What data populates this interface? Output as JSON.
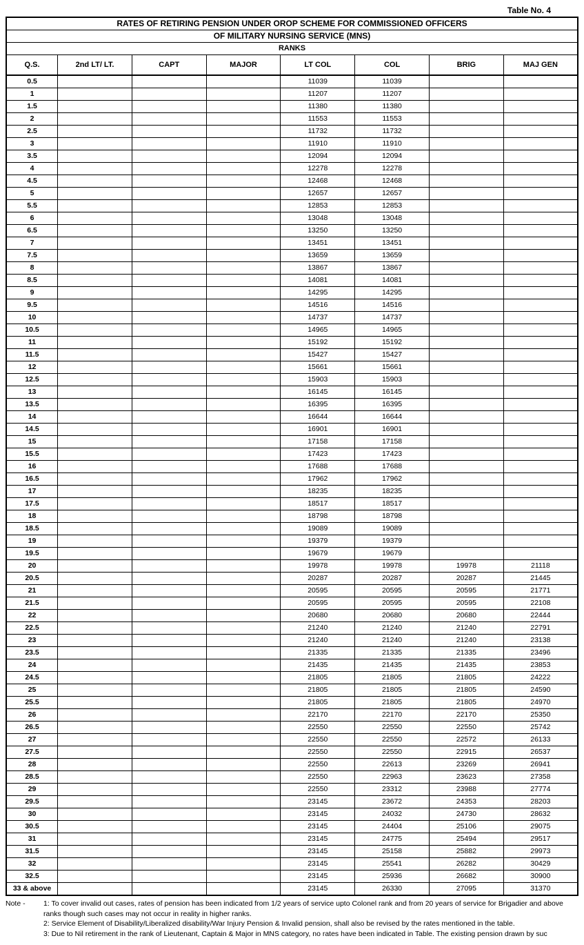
{
  "table_label": "Table No. 4",
  "title_line1": "RATES OF RETIRING PENSION UNDER OROP SCHEME FOR COMMISSIONED OFFICERS",
  "title_line2": "OF MILITARY NURSING SERVICE (MNS)",
  "ranks_label": "RANKS",
  "columns": [
    "Q.S.",
    "2nd LT/ LT.",
    "CAPT",
    "MAJOR",
    "LT COL",
    "COL",
    "BRIG",
    "MAJ GEN"
  ],
  "col_widths": [
    "9%",
    "13%",
    "13%",
    "13%",
    "13%",
    "13%",
    "13%",
    "13%"
  ],
  "rows": [
    {
      "qs": "0.5",
      "lt": "",
      "capt": "",
      "maj": "",
      "ltcol": "11039",
      "col": "11039",
      "brig": "",
      "mg": ""
    },
    {
      "qs": "1",
      "lt": "",
      "capt": "",
      "maj": "",
      "ltcol": "11207",
      "col": "11207",
      "brig": "",
      "mg": ""
    },
    {
      "qs": "1.5",
      "lt": "",
      "capt": "",
      "maj": "",
      "ltcol": "11380",
      "col": "11380",
      "brig": "",
      "mg": ""
    },
    {
      "qs": "2",
      "lt": "",
      "capt": "",
      "maj": "",
      "ltcol": "11553",
      "col": "11553",
      "brig": "",
      "mg": ""
    },
    {
      "qs": "2.5",
      "lt": "",
      "capt": "",
      "maj": "",
      "ltcol": "11732",
      "col": "11732",
      "brig": "",
      "mg": ""
    },
    {
      "qs": "3",
      "lt": "",
      "capt": "",
      "maj": "",
      "ltcol": "11910",
      "col": "11910",
      "brig": "",
      "mg": ""
    },
    {
      "qs": "3.5",
      "lt": "",
      "capt": "",
      "maj": "",
      "ltcol": "12094",
      "col": "12094",
      "brig": "",
      "mg": ""
    },
    {
      "qs": "4",
      "lt": "",
      "capt": "",
      "maj": "",
      "ltcol": "12278",
      "col": "12278",
      "brig": "",
      "mg": ""
    },
    {
      "qs": "4.5",
      "lt": "",
      "capt": "",
      "maj": "",
      "ltcol": "12468",
      "col": "12468",
      "brig": "",
      "mg": ""
    },
    {
      "qs": "5",
      "lt": "",
      "capt": "",
      "maj": "",
      "ltcol": "12657",
      "col": "12657",
      "brig": "",
      "mg": ""
    },
    {
      "qs": "5.5",
      "lt": "",
      "capt": "",
      "maj": "",
      "ltcol": "12853",
      "col": "12853",
      "brig": "",
      "mg": ""
    },
    {
      "qs": "6",
      "lt": "",
      "capt": "",
      "maj": "",
      "ltcol": "13048",
      "col": "13048",
      "brig": "",
      "mg": ""
    },
    {
      "qs": "6.5",
      "lt": "",
      "capt": "",
      "maj": "",
      "ltcol": "13250",
      "col": "13250",
      "brig": "",
      "mg": ""
    },
    {
      "qs": "7",
      "lt": "",
      "capt": "",
      "maj": "",
      "ltcol": "13451",
      "col": "13451",
      "brig": "",
      "mg": ""
    },
    {
      "qs": "7.5",
      "lt": "",
      "capt": "",
      "maj": "",
      "ltcol": "13659",
      "col": "13659",
      "brig": "",
      "mg": ""
    },
    {
      "qs": "8",
      "lt": "",
      "capt": "",
      "maj": "",
      "ltcol": "13867",
      "col": "13867",
      "brig": "",
      "mg": ""
    },
    {
      "qs": "8.5",
      "lt": "",
      "capt": "",
      "maj": "",
      "ltcol": "14081",
      "col": "14081",
      "brig": "",
      "mg": ""
    },
    {
      "qs": "9",
      "lt": "",
      "capt": "",
      "maj": "",
      "ltcol": "14295",
      "col": "14295",
      "brig": "",
      "mg": ""
    },
    {
      "qs": "9.5",
      "lt": "",
      "capt": "",
      "maj": "",
      "ltcol": "14516",
      "col": "14516",
      "brig": "",
      "mg": ""
    },
    {
      "qs": "10",
      "lt": "",
      "capt": "",
      "maj": "",
      "ltcol": "14737",
      "col": "14737",
      "brig": "",
      "mg": ""
    },
    {
      "qs": "10.5",
      "lt": "",
      "capt": "",
      "maj": "",
      "ltcol": "14965",
      "col": "14965",
      "brig": "",
      "mg": ""
    },
    {
      "qs": "11",
      "lt": "",
      "capt": "",
      "maj": "",
      "ltcol": "15192",
      "col": "15192",
      "brig": "",
      "mg": ""
    },
    {
      "qs": "11.5",
      "lt": "",
      "capt": "",
      "maj": "",
      "ltcol": "15427",
      "col": "15427",
      "brig": "",
      "mg": ""
    },
    {
      "qs": "12",
      "lt": "",
      "capt": "",
      "maj": "",
      "ltcol": "15661",
      "col": "15661",
      "brig": "",
      "mg": ""
    },
    {
      "qs": "12.5",
      "lt": "",
      "capt": "",
      "maj": "",
      "ltcol": "15903",
      "col": "15903",
      "brig": "",
      "mg": ""
    },
    {
      "qs": "13",
      "lt": "",
      "capt": "",
      "maj": "",
      "ltcol": "16145",
      "col": "16145",
      "brig": "",
      "mg": ""
    },
    {
      "qs": "13.5",
      "lt": "",
      "capt": "",
      "maj": "",
      "ltcol": "16395",
      "col": "16395",
      "brig": "",
      "mg": ""
    },
    {
      "qs": "14",
      "lt": "",
      "capt": "",
      "maj": "",
      "ltcol": "16644",
      "col": "16644",
      "brig": "",
      "mg": ""
    },
    {
      "qs": "14.5",
      "lt": "",
      "capt": "",
      "maj": "",
      "ltcol": "16901",
      "col": "16901",
      "brig": "",
      "mg": ""
    },
    {
      "qs": "15",
      "lt": "",
      "capt": "",
      "maj": "",
      "ltcol": "17158",
      "col": "17158",
      "brig": "",
      "mg": ""
    },
    {
      "qs": "15.5",
      "lt": "",
      "capt": "",
      "maj": "",
      "ltcol": "17423",
      "col": "17423",
      "brig": "",
      "mg": ""
    },
    {
      "qs": "16",
      "lt": "",
      "capt": "",
      "maj": "",
      "ltcol": "17688",
      "col": "17688",
      "brig": "",
      "mg": ""
    },
    {
      "qs": "16.5",
      "lt": "",
      "capt": "",
      "maj": "",
      "ltcol": "17962",
      "col": "17962",
      "brig": "",
      "mg": ""
    },
    {
      "qs": "17",
      "lt": "",
      "capt": "",
      "maj": "",
      "ltcol": "18235",
      "col": "18235",
      "brig": "",
      "mg": ""
    },
    {
      "qs": "17.5",
      "lt": "",
      "capt": "",
      "maj": "",
      "ltcol": "18517",
      "col": "18517",
      "brig": "",
      "mg": ""
    },
    {
      "qs": "18",
      "lt": "",
      "capt": "",
      "maj": "",
      "ltcol": "18798",
      "col": "18798",
      "brig": "",
      "mg": ""
    },
    {
      "qs": "18.5",
      "lt": "",
      "capt": "",
      "maj": "",
      "ltcol": "19089",
      "col": "19089",
      "brig": "",
      "mg": ""
    },
    {
      "qs": "19",
      "lt": "",
      "capt": "",
      "maj": "",
      "ltcol": "19379",
      "col": "19379",
      "brig": "",
      "mg": ""
    },
    {
      "qs": "19.5",
      "lt": "",
      "capt": "",
      "maj": "",
      "ltcol": "19679",
      "col": "19679",
      "brig": "",
      "mg": ""
    },
    {
      "qs": "20",
      "lt": "",
      "capt": "",
      "maj": "",
      "ltcol": "19978",
      "col": "19978",
      "brig": "19978",
      "mg": "21118"
    },
    {
      "qs": "20.5",
      "lt": "",
      "capt": "",
      "maj": "",
      "ltcol": "20287",
      "col": "20287",
      "brig": "20287",
      "mg": "21445"
    },
    {
      "qs": "21",
      "lt": "",
      "capt": "",
      "maj": "",
      "ltcol": "20595",
      "col": "20595",
      "brig": "20595",
      "mg": "21771"
    },
    {
      "qs": "21.5",
      "lt": "",
      "capt": "",
      "maj": "",
      "ltcol": "20595",
      "col": "20595",
      "brig": "20595",
      "mg": "22108"
    },
    {
      "qs": "22",
      "lt": "",
      "capt": "",
      "maj": "",
      "ltcol": "20680",
      "col": "20680",
      "brig": "20680",
      "mg": "22444"
    },
    {
      "qs": "22.5",
      "lt": "",
      "capt": "",
      "maj": "",
      "ltcol": "21240",
      "col": "21240",
      "brig": "21240",
      "mg": "22791"
    },
    {
      "qs": "23",
      "lt": "",
      "capt": "",
      "maj": "",
      "ltcol": "21240",
      "col": "21240",
      "brig": "21240",
      "mg": "23138"
    },
    {
      "qs": "23.5",
      "lt": "",
      "capt": "",
      "maj": "",
      "ltcol": "21335",
      "col": "21335",
      "brig": "21335",
      "mg": "23496"
    },
    {
      "qs": "24",
      "lt": "",
      "capt": "",
      "maj": "",
      "ltcol": "21435",
      "col": "21435",
      "brig": "21435",
      "mg": "23853"
    },
    {
      "qs": "24.5",
      "lt": "",
      "capt": "",
      "maj": "",
      "ltcol": "21805",
      "col": "21805",
      "brig": "21805",
      "mg": "24222"
    },
    {
      "qs": "25",
      "lt": "",
      "capt": "",
      "maj": "",
      "ltcol": "21805",
      "col": "21805",
      "brig": "21805",
      "mg": "24590"
    },
    {
      "qs": "25.5",
      "lt": "",
      "capt": "",
      "maj": "",
      "ltcol": "21805",
      "col": "21805",
      "brig": "21805",
      "mg": "24970"
    },
    {
      "qs": "26",
      "lt": "",
      "capt": "",
      "maj": "",
      "ltcol": "22170",
      "col": "22170",
      "brig": "22170",
      "mg": "25350"
    },
    {
      "qs": "26.5",
      "lt": "",
      "capt": "",
      "maj": "",
      "ltcol": "22550",
      "col": "22550",
      "brig": "22550",
      "mg": "25742"
    },
    {
      "qs": "27",
      "lt": "",
      "capt": "",
      "maj": "",
      "ltcol": "22550",
      "col": "22550",
      "brig": "22572",
      "mg": "26133"
    },
    {
      "qs": "27.5",
      "lt": "",
      "capt": "",
      "maj": "",
      "ltcol": "22550",
      "col": "22550",
      "brig": "22915",
      "mg": "26537"
    },
    {
      "qs": "28",
      "lt": "",
      "capt": "",
      "maj": "",
      "ltcol": "22550",
      "col": "22613",
      "brig": "23269",
      "mg": "26941"
    },
    {
      "qs": "28.5",
      "lt": "",
      "capt": "",
      "maj": "",
      "ltcol": "22550",
      "col": "22963",
      "brig": "23623",
      "mg": "27358"
    },
    {
      "qs": "29",
      "lt": "",
      "capt": "",
      "maj": "",
      "ltcol": "22550",
      "col": "23312",
      "brig": "23988",
      "mg": "27774"
    },
    {
      "qs": "29.5",
      "lt": "",
      "capt": "",
      "maj": "",
      "ltcol": "23145",
      "col": "23672",
      "brig": "24353",
      "mg": "28203"
    },
    {
      "qs": "30",
      "lt": "",
      "capt": "",
      "maj": "",
      "ltcol": "23145",
      "col": "24032",
      "brig": "24730",
      "mg": "28632"
    },
    {
      "qs": "30.5",
      "lt": "",
      "capt": "",
      "maj": "",
      "ltcol": "23145",
      "col": "24404",
      "brig": "25106",
      "mg": "29075"
    },
    {
      "qs": "31",
      "lt": "",
      "capt": "",
      "maj": "",
      "ltcol": "23145",
      "col": "24775",
      "brig": "25494",
      "mg": "29517"
    },
    {
      "qs": "31.5",
      "lt": "",
      "capt": "",
      "maj": "",
      "ltcol": "23145",
      "col": "25158",
      "brig": "25882",
      "mg": "29973"
    },
    {
      "qs": "32",
      "lt": "",
      "capt": "",
      "maj": "",
      "ltcol": "23145",
      "col": "25541",
      "brig": "26282",
      "mg": "30429"
    },
    {
      "qs": "32.5",
      "lt": "",
      "capt": "",
      "maj": "",
      "ltcol": "23145",
      "col": "25936",
      "brig": "26682",
      "mg": "30900"
    },
    {
      "qs": "33 & above",
      "lt": "",
      "capt": "",
      "maj": "",
      "ltcol": "23145",
      "col": "26330",
      "brig": "27095",
      "mg": "31370"
    }
  ],
  "notes_label": "Note -",
  "notes": [
    "1: To cover invalid out cases, rates of pension has been indicated from 1/2 years of service upto Colonel rank and from 20 years of service for Brigadier and above ranks though such cases may not occur in reality in higher ranks.",
    "2: Service Element of Disability/Liberalized disability/War Injury Pension & Invalid pension, shall also be revised by the rates mentioned in the table.",
    "3: Due to Nil retirement in the rank of Lieutenant, Captain & Major in MNS category, no rates have been indicated in Table. The existing pension drawn by suc"
  ]
}
